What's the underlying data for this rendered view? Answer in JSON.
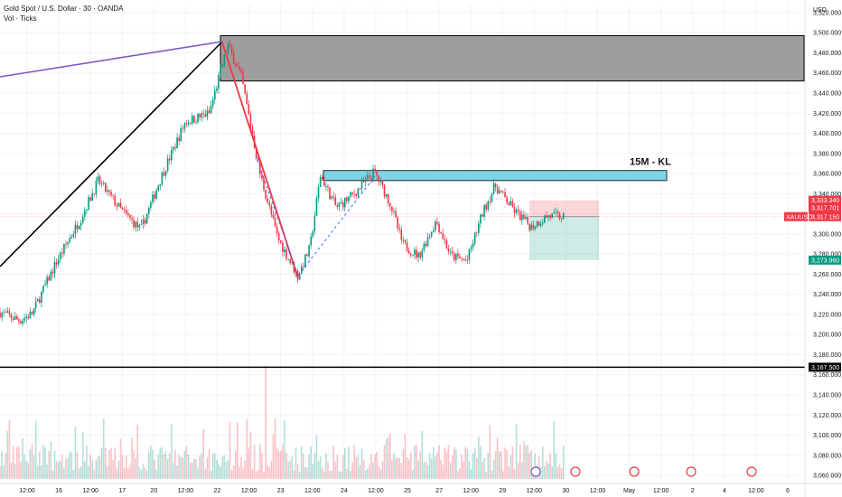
{
  "legend": {
    "symbol_line": "Gold Spot / U.S. Dollar · 30 · OANDA",
    "volume_line": "Vol · Ticks"
  },
  "currency": "USD",
  "chart_data": {
    "type": "candlestick",
    "symbol": "XAUUSD",
    "title": "Gold Spot / U.S. Dollar · 30 · OANDA",
    "y_ticks": [
      3520,
      3500,
      3480,
      3460,
      3440,
      3420,
      3400,
      3380,
      3360,
      3340,
      3320,
      3300,
      3280,
      3260,
      3240,
      3220,
      3200,
      3180,
      3160,
      3140,
      3120,
      3100,
      3080,
      3060
    ],
    "ylim": [
      3052,
      3528
    ],
    "x_ticks": [
      "12:00",
      "16",
      "12:00",
      "17",
      "20",
      "12:00",
      "22",
      "12:00",
      "23",
      "12:00",
      "24",
      "12:00",
      "25",
      "27",
      "12:00",
      "29",
      "12:00",
      "30",
      "12:00",
      "May",
      "12:00",
      "2",
      "4",
      "12:00",
      "6"
    ],
    "price_path": [
      {
        "t": 0,
        "p": 3222
      },
      {
        "t": 0.025,
        "p": 3214
      },
      {
        "t": 0.04,
        "p": 3221
      },
      {
        "t": 0.07,
        "p": 3272
      },
      {
        "t": 0.1,
        "p": 3315
      },
      {
        "t": 0.122,
        "p": 3353
      },
      {
        "t": 0.15,
        "p": 3324
      },
      {
        "t": 0.175,
        "p": 3304
      },
      {
        "t": 0.2,
        "p": 3356
      },
      {
        "t": 0.23,
        "p": 3411
      },
      {
        "t": 0.26,
        "p": 3420
      },
      {
        "t": 0.283,
        "p": 3488
      },
      {
        "t": 0.3,
        "p": 3455
      },
      {
        "t": 0.323,
        "p": 3360
      },
      {
        "t": 0.345,
        "p": 3296
      },
      {
        "t": 0.37,
        "p": 3258
      },
      {
        "t": 0.385,
        "p": 3286
      },
      {
        "t": 0.398,
        "p": 3358
      },
      {
        "t": 0.418,
        "p": 3326
      },
      {
        "t": 0.44,
        "p": 3340
      },
      {
        "t": 0.465,
        "p": 3362
      },
      {
        "t": 0.485,
        "p": 3330
      },
      {
        "t": 0.5,
        "p": 3290
      },
      {
        "t": 0.52,
        "p": 3278
      },
      {
        "t": 0.542,
        "p": 3313
      },
      {
        "t": 0.56,
        "p": 3278
      },
      {
        "t": 0.58,
        "p": 3273
      },
      {
        "t": 0.6,
        "p": 3322
      },
      {
        "t": 0.615,
        "p": 3348
      },
      {
        "t": 0.64,
        "p": 3322
      },
      {
        "t": 0.66,
        "p": 3307
      },
      {
        "t": 0.68,
        "p": 3318
      },
      {
        "t": 0.7,
        "p": 3317
      }
    ],
    "volume_peak_label": "",
    "zones": [
      {
        "name": "supply-zone",
        "from": 3452,
        "to": 3497,
        "color": "#9e9e9e"
      },
      {
        "name": "key-level-15m",
        "label": "15M - KL",
        "from": 3353,
        "to": 3363,
        "color": "#7fd3e6"
      }
    ],
    "position": {
      "entry": 3317.15,
      "target": 3273.96,
      "stop": 3333.34
    },
    "horizontal_line": 3167.5,
    "price_labels": [
      {
        "name": "stop-price",
        "text": "3,333.340",
        "color": "#f23645"
      },
      {
        "name": "price-1",
        "text": "3,317.701",
        "color": "#f23645"
      },
      {
        "name": "last-price",
        "text": "3,317.150",
        "color": "#f23645",
        "symbol": "XAUUSD"
      },
      {
        "name": "target-price",
        "text": "3,273.960",
        "color": "#089981"
      },
      {
        "name": "line-price",
        "text": "3,167.500",
        "color": "#000000"
      }
    ],
    "colors": {
      "up": "#089981",
      "down": "#f23645",
      "trend": "#000000",
      "channel": "#7e57c2",
      "fall": "#f23645",
      "dash": "#2962ff"
    }
  }
}
